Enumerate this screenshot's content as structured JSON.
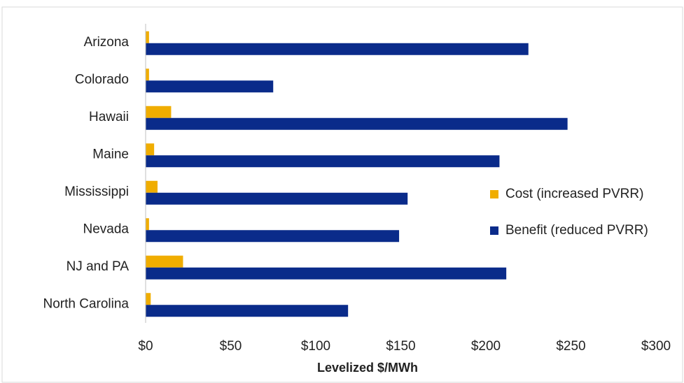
{
  "chart_data": {
    "type": "hbar",
    "xlabel": "Levelized $/MWh",
    "categories": [
      "Arizona",
      "Colorado",
      "Hawaii",
      "Maine",
      "Mississippi",
      "Nevada",
      "NJ and PA",
      "North Carolina"
    ],
    "series": [
      {
        "name": "Cost (increased PVRR)",
        "color": "#f0ad00",
        "values": [
          2,
          2,
          15,
          5,
          7,
          2,
          22,
          3
        ]
      },
      {
        "name": "Benefit (reduced PVRR)",
        "color": "#0a2b8a",
        "values": [
          225,
          75,
          248,
          208,
          154,
          149,
          212,
          119
        ]
      }
    ],
    "xlim": [
      0,
      300
    ],
    "xticks": [
      {
        "value": 0,
        "label": "$0"
      },
      {
        "value": 50,
        "label": "$50"
      },
      {
        "value": 100,
        "label": "$100"
      },
      {
        "value": 150,
        "label": "$150"
      },
      {
        "value": 200,
        "label": "$200"
      },
      {
        "value": 250,
        "label": "$250"
      },
      {
        "value": 300,
        "label": "$300"
      }
    ],
    "legend": "right"
  }
}
